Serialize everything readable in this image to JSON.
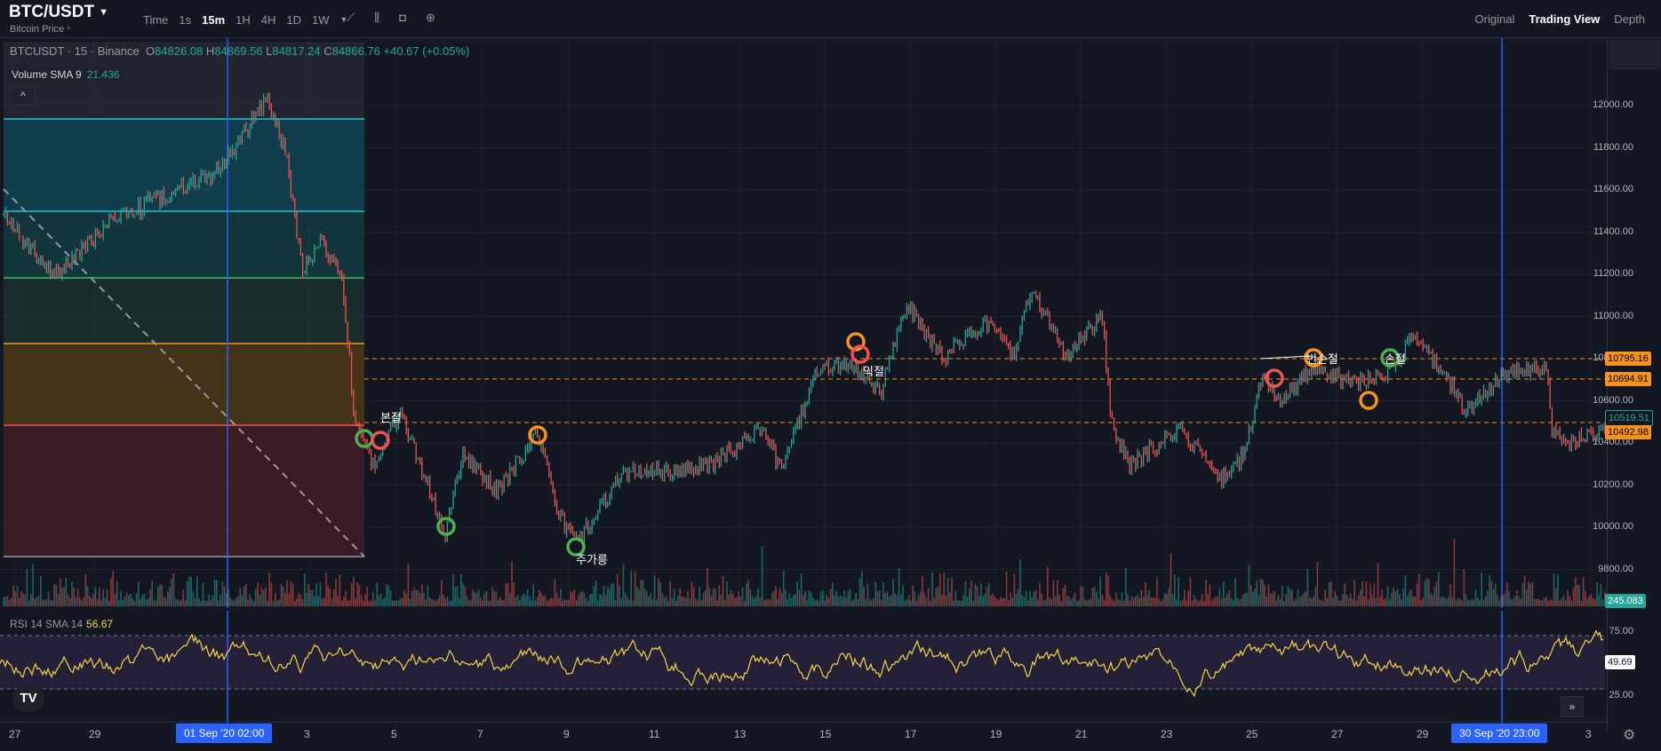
{
  "header": {
    "symbol": "BTC/USDT",
    "subtitle": "Bitcoin Price",
    "timeframes": [
      "Time",
      "1s",
      "15m",
      "1H",
      "4H",
      "1D",
      "1W"
    ],
    "active_tf": "15m",
    "views": [
      "Original",
      "Trading View",
      "Depth"
    ],
    "active_view": "Trading View"
  },
  "legend": {
    "symbol": "BTCUSDT · 15 · Binance",
    "o_label": "O",
    "o": "84826.08",
    "h_label": "H",
    "h": "84869.56",
    "l_label": "L",
    "l": "84817.24",
    "c_label": "C",
    "c": "84866.76",
    "change": "+40.67 (+0.05%)"
  },
  "volume": {
    "label": "Volume SMA 9",
    "value": "21.436"
  },
  "rsi": {
    "label": "RSI 14 SMA 14",
    "value": "56.67",
    "levels": [
      "75.00",
      "25.00"
    ],
    "current": "49.69"
  },
  "price_axis": [
    "12000.00",
    "11800.00",
    "11600.00",
    "11400.00",
    "11200.00",
    "11000.00",
    "10800.00",
    "10600.00",
    "10400.00",
    "10200.00",
    "10000.00",
    "9800.00"
  ],
  "price_tags": [
    {
      "text": "10795.16",
      "color": "#f7931a"
    },
    {
      "text": "10694.91",
      "color": "#f7931a"
    },
    {
      "text": "10519.51",
      "color": "#26a69a"
    },
    {
      "text": "10492.98",
      "color": "#f7931a"
    }
  ],
  "volume_tag": "245.083",
  "time_axis": [
    "27",
    "29",
    "3",
    "5",
    "7",
    "9",
    "11",
    "13",
    "15",
    "17",
    "19",
    "21",
    "23",
    "25",
    "27",
    "29",
    "3"
  ],
  "time_highlights": [
    "01 Sep '20   02:00",
    "30 Sep '20   23:00"
  ],
  "annotations": [
    "본절",
    "주가릉",
    "익절",
    "번손절",
    "손절"
  ],
  "logo": "TV",
  "colors": {
    "up": "#26a69a",
    "down": "#ef5350",
    "accent": "#2962ff",
    "rsi": "#f5d547"
  }
}
